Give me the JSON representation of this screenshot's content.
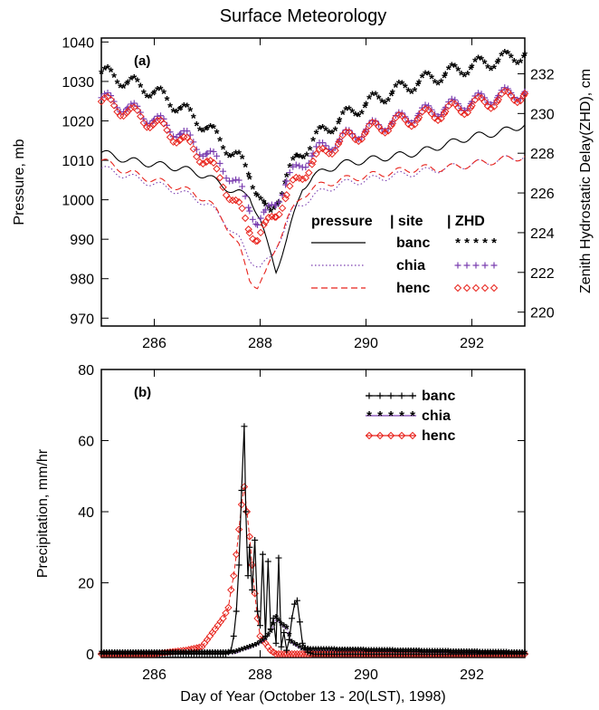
{
  "figure": {
    "title": "Surface Meteorology"
  },
  "chart_data": [
    {
      "panel_label": "(a)",
      "type": "line",
      "ylabel": "Pressure, mb",
      "y2label": "Zenith Hydrostatic Delay(ZHD), cm",
      "xlim": [
        285,
        293
      ],
      "ylim": [
        968,
        1041
      ],
      "y2lim": [
        219.3,
        233.8
      ],
      "xticks": [
        286,
        288,
        290,
        292
      ],
      "yticks": [
        970,
        980,
        990,
        1000,
        1010,
        1020,
        1030,
        1040
      ],
      "y2ticks": [
        220,
        222,
        224,
        226,
        228,
        230,
        232
      ],
      "legend": {
        "headers": {
          "pressure": "pressure",
          "site": "| site",
          "zhd": "| ZHD"
        },
        "position": "lower-right",
        "entries": [
          {
            "site": "banc",
            "color": "#000000",
            "pressure_line": "solid",
            "zhd_marker": "*****"
          },
          {
            "site": "chia",
            "color": "#7b3fb0",
            "pressure_line": "dotted",
            "zhd_marker": "+++++"
          },
          {
            "site": "henc",
            "color": "#e8231c",
            "pressure_line": "dashed",
            "zhd_marker": "◇◇◇◇◇"
          }
        ]
      },
      "series": [
        {
          "name": "banc",
          "kind": "pressure",
          "x": [
            285.0,
            285.5,
            286.0,
            286.5,
            287.0,
            287.5,
            287.8,
            288.0,
            288.15,
            288.3,
            288.5,
            288.8,
            289.0,
            289.5,
            290.0,
            290.5,
            291.0,
            291.5,
            292.0,
            292.5,
            293.0
          ],
          "y": [
            1012,
            1010,
            1009,
            1008,
            1006,
            1002,
            1001,
            995,
            988,
            982,
            990,
            1003,
            1006,
            1009,
            1010,
            1011,
            1012,
            1014,
            1016,
            1017,
            1019
          ]
        },
        {
          "name": "chia",
          "kind": "pressure",
          "x": [
            285.0,
            285.5,
            286.0,
            286.5,
            287.0,
            287.3,
            287.6,
            287.8,
            288.0,
            288.2,
            288.4,
            288.6,
            289.0,
            289.5,
            290.0,
            290.5,
            291.0,
            291.5,
            292.0,
            292.5,
            293.0
          ],
          "y": [
            1008,
            1006,
            1004,
            1002,
            999,
            995,
            990,
            985,
            983,
            985,
            991,
            997,
            1001,
            1004,
            1005,
            1006,
            1007,
            1008,
            1009,
            1010,
            1011
          ]
        },
        {
          "name": "henc",
          "kind": "pressure",
          "x": [
            285.0,
            285.5,
            286.0,
            286.5,
            287.0,
            287.3,
            287.6,
            287.8,
            287.95,
            288.1,
            288.3,
            288.5,
            288.8,
            289.0,
            289.5,
            290.0,
            290.5,
            291.0,
            291.5,
            292.0,
            292.5,
            293.0
          ],
          "y": [
            1010,
            1007,
            1005,
            1003,
            1000,
            995,
            988,
            980,
            978,
            981,
            988,
            995,
            1001,
            1003,
            1005,
            1006,
            1007,
            1008,
            1008,
            1009,
            1010,
            1011
          ]
        },
        {
          "name": "banc",
          "kind": "ZHD",
          "x": [
            285.0,
            285.5,
            286.0,
            286.5,
            287.0,
            287.3,
            287.6,
            287.8,
            287.95,
            288.1,
            288.2,
            288.35,
            288.5,
            288.7,
            289.0,
            289.5,
            290.0,
            290.5,
            291.0,
            291.5,
            292.0,
            292.5,
            293.0
          ],
          "y": [
            232.0,
            231.5,
            231.0,
            230.2,
            229.2,
            228.4,
            227.6,
            226.9,
            226.0,
            225.0,
            224.8,
            225.8,
            226.8,
            227.6,
            228.6,
            229.6,
            230.4,
            231.0,
            231.5,
            231.9,
            232.3,
            232.6,
            232.9
          ]
        },
        {
          "name": "chia",
          "kind": "ZHD",
          "x": [
            285.0,
            285.5,
            286.0,
            286.5,
            287.0,
            287.3,
            287.6,
            287.8,
            287.95,
            288.1,
            288.3,
            288.5,
            288.8,
            289.0,
            289.5,
            290.0,
            290.5,
            291.0,
            291.5,
            292.0,
            292.5,
            293.0
          ],
          "y": [
            230.8,
            230.3,
            229.7,
            229.0,
            228.0,
            227.3,
            226.3,
            225.3,
            224.6,
            224.8,
            225.6,
            226.6,
            227.5,
            228.0,
            228.7,
            229.2,
            229.6,
            230.0,
            230.3,
            230.6,
            230.9,
            231.1
          ]
        },
        {
          "name": "henc",
          "kind": "ZHD",
          "x": [
            285.0,
            285.5,
            286.0,
            286.5,
            287.0,
            287.3,
            287.6,
            287.8,
            287.95,
            288.1,
            288.3,
            288.5,
            288.8,
            289.0,
            289.5,
            290.0,
            290.5,
            291.0,
            291.5,
            292.0,
            292.5,
            293.0
          ],
          "y": [
            230.6,
            230.1,
            229.5,
            228.7,
            227.6,
            226.5,
            225.2,
            224.2,
            223.8,
            224.2,
            225.0,
            225.9,
            226.9,
            227.6,
            228.6,
            229.1,
            229.5,
            229.8,
            230.1,
            230.4,
            230.7,
            231.0
          ]
        }
      ]
    },
    {
      "panel_label": "(b)",
      "type": "line",
      "xlabel": "Day of Year (October 13 - 20(LST), 1998)",
      "ylabel": "Precipitation, mm/hr",
      "xlim": [
        285,
        293
      ],
      "ylim": [
        -1,
        80
      ],
      "xticks": [
        286,
        288,
        290,
        292
      ],
      "yticks": [
        0,
        20,
        40,
        60,
        80
      ],
      "legend": {
        "position": "top-right",
        "entries": [
          {
            "site": "banc",
            "color": "#000000",
            "marker": "+++++"
          },
          {
            "site": "chia",
            "color": "#7b3fb0",
            "marker": "*****"
          },
          {
            "site": "henc",
            "color": "#e8231c",
            "marker": "◇◇◇◇◇"
          }
        ]
      },
      "series": [
        {
          "name": "banc",
          "x": [
            285.0,
            287.35,
            287.45,
            287.5,
            287.55,
            287.6,
            287.65,
            287.7,
            287.73,
            287.77,
            287.8,
            287.85,
            287.9,
            287.95,
            288.0,
            288.05,
            288.1,
            288.15,
            288.2,
            288.25,
            288.3,
            288.35,
            288.4,
            288.45,
            288.5,
            288.55,
            288.6,
            288.65,
            288.7,
            288.75,
            288.8,
            288.9,
            289.0,
            293.0
          ],
          "y": [
            0,
            0,
            1,
            5,
            12,
            25,
            46,
            64,
            40,
            22,
            30,
            18,
            32,
            12,
            8,
            28,
            5,
            26,
            7,
            10,
            3,
            27,
            2,
            6,
            1,
            4,
            10,
            14,
            15,
            9,
            3,
            0.5,
            0,
            0
          ]
        },
        {
          "name": "chia",
          "x": [
            285.0,
            287.5,
            287.7,
            287.9,
            288.0,
            288.1,
            288.2,
            288.3,
            288.4,
            288.5,
            288.6,
            288.7,
            288.8,
            293.0
          ],
          "y": [
            0,
            0,
            1,
            2,
            3,
            4,
            6,
            10,
            8,
            7,
            3,
            2,
            1,
            0
          ]
        },
        {
          "name": "henc",
          "x": [
            285.0,
            286.0,
            286.3,
            286.6,
            286.9,
            287.0,
            287.1,
            287.2,
            287.3,
            287.4,
            287.45,
            287.5,
            287.55,
            287.6,
            287.65,
            287.7,
            287.75,
            287.8,
            287.85,
            287.9,
            287.95,
            288.0,
            288.1,
            288.2,
            288.3,
            293.0
          ],
          "y": [
            0,
            0,
            0.5,
            1,
            2,
            4,
            6,
            8,
            10,
            13,
            18,
            22,
            28,
            35,
            42,
            47,
            40,
            33,
            25,
            17,
            10,
            5,
            3,
            1,
            0,
            0
          ]
        }
      ]
    }
  ]
}
